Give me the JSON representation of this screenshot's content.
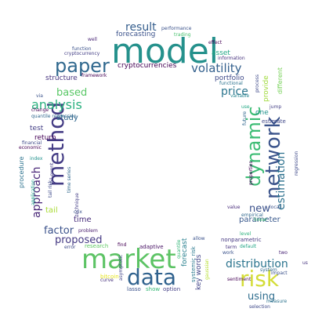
{
  "words": [
    {
      "text": "model",
      "color": "#25918c"
    },
    {
      "text": "market",
      "color": "#5cc364"
    },
    {
      "text": "data",
      "color": "#30628e"
    },
    {
      "text": "risk",
      "color": "#d4dd38"
    },
    {
      "text": "method",
      "color": "#433b84"
    },
    {
      "text": "network",
      "color": "#3a538b"
    },
    {
      "text": "dynamic",
      "color": "#3cbc74"
    },
    {
      "text": "paper",
      "color": "#30688e"
    },
    {
      "text": "volatility",
      "color": "#34608d"
    },
    {
      "text": "analysis",
      "color": "#2ab07f"
    },
    {
      "text": "distribution",
      "color": "#2b748e"
    },
    {
      "text": "result",
      "color": "#355e8d"
    },
    {
      "text": "estimation",
      "color": "#2d718e"
    },
    {
      "text": "based",
      "color": "#58c765"
    },
    {
      "text": "price",
      "color": "#2b758e"
    },
    {
      "text": "approach",
      "color": "#482677"
    },
    {
      "text": "proposed",
      "color": "#443983"
    },
    {
      "text": "factor",
      "color": "#3b528b"
    },
    {
      "text": "using",
      "color": "#2e6d8e"
    },
    {
      "text": "new",
      "color": "#3b518b"
    },
    {
      "text": "time",
      "color": "#472d7b"
    },
    {
      "text": "key words",
      "color": "#414487"
    },
    {
      "text": "tail",
      "color": "#a8db34"
    },
    {
      "text": "study",
      "color": "#31688e"
    },
    {
      "text": "parameter",
      "color": "#38588c"
    },
    {
      "text": "forecasting",
      "color": "#3b528b"
    },
    {
      "text": "cryptocurrencies",
      "color": "#440154"
    },
    {
      "text": "portfolio",
      "color": "#3e4989"
    },
    {
      "text": "asset",
      "color": "#22a785"
    },
    {
      "text": "return",
      "color": "#440256"
    },
    {
      "text": "test",
      "color": "#433e85"
    },
    {
      "text": "structure",
      "color": "#46327e"
    },
    {
      "text": "procedure",
      "color": "#2c728e"
    },
    {
      "text": "one",
      "color": "#21918c"
    },
    {
      "text": "provide",
      "color": "#9fda3a"
    },
    {
      "text": "different",
      "color": "#74d055"
    },
    {
      "text": "forecast",
      "color": "#277f8e"
    },
    {
      "text": "systemic risk",
      "color": "#2a788e"
    },
    {
      "text": "estimate",
      "color": "#3f4788"
    },
    {
      "text": "nonparametric",
      "color": "#453781"
    },
    {
      "text": "adaptive",
      "color": "#471164"
    },
    {
      "text": "problem",
      "color": "#481c6e"
    },
    {
      "text": "bitcoin",
      "color": "#e5e419"
    },
    {
      "text": "research",
      "color": "#5ec962"
    },
    {
      "text": "show",
      "color": "#38b977"
    },
    {
      "text": "option",
      "color": "#433e85"
    },
    {
      "text": "lasso",
      "color": "#3b528b"
    },
    {
      "text": "asymptotic",
      "color": "#414487"
    },
    {
      "text": "curve",
      "color": "#46327e"
    },
    {
      "text": "quantile",
      "color": "#35b779"
    },
    {
      "text": "find",
      "color": "#440154"
    },
    {
      "text": "error",
      "color": "#3e4a89"
    },
    {
      "text": "allow",
      "color": "#3b528b"
    },
    {
      "text": "level",
      "color": "#2db27d"
    },
    {
      "text": "default",
      "color": "#21a685"
    },
    {
      "text": "work",
      "color": "#3b528b"
    },
    {
      "text": "term",
      "color": "#46337f"
    },
    {
      "text": "sentiment",
      "color": "#440154"
    },
    {
      "text": "two",
      "color": "#482475"
    },
    {
      "text": "system",
      "color": "#31688e"
    },
    {
      "text": "impact",
      "color": "#3b528b"
    },
    {
      "text": "measure",
      "color": "#2c728e"
    },
    {
      "text": "selection",
      "color": "#3e4989"
    },
    {
      "text": "us",
      "color": "#46337f"
    },
    {
      "text": "gaussian",
      "color": "#b5de2b"
    },
    {
      "text": "linear",
      "color": "#3fbc73"
    },
    {
      "text": "empirical",
      "color": "#31688e"
    },
    {
      "text": "value",
      "color": "#472a7a"
    },
    {
      "text": "local",
      "color": "#3b528b"
    },
    {
      "text": "properties",
      "color": "#440154"
    },
    {
      "text": "future",
      "color": "#31688e"
    },
    {
      "text": "use",
      "color": "#22a884"
    },
    {
      "text": "jump",
      "color": "#433e85"
    },
    {
      "text": "regression",
      "color": "#3e4989"
    },
    {
      "text": "variable",
      "color": "#25848e"
    },
    {
      "text": "performance",
      "color": "#3b528b"
    },
    {
      "text": "trading",
      "color": "#48c16e"
    },
    {
      "text": "effect",
      "color": "#440154"
    },
    {
      "text": "information",
      "color": "#46327e"
    },
    {
      "text": "functional",
      "color": "#2c728e"
    },
    {
      "text": "process",
      "color": "#3e4989"
    },
    {
      "text": "framework",
      "color": "#440154"
    },
    {
      "text": "cryptocurrency",
      "color": "#433e85"
    },
    {
      "text": "function",
      "color": "#3b528b"
    },
    {
      "text": "well",
      "color": "#482475"
    },
    {
      "text": "via",
      "color": "#3b528b"
    },
    {
      "text": "change",
      "color": "#440154"
    },
    {
      "text": "quantile regression",
      "color": "#31688e"
    },
    {
      "text": "tail event",
      "color": "#433e85"
    },
    {
      "text": "financial",
      "color": "#3e4989"
    },
    {
      "text": "economic",
      "color": "#440154"
    },
    {
      "text": "index",
      "color": "#21918c"
    },
    {
      "text": "application",
      "color": "#1f9e89"
    },
    {
      "text": "tail risk",
      "color": "#3e4989"
    },
    {
      "text": "time series",
      "color": "#31688e"
    },
    {
      "text": "technique",
      "color": "#433e85"
    },
    {
      "text": "crix",
      "color": "#3b528b"
    }
  ]
}
